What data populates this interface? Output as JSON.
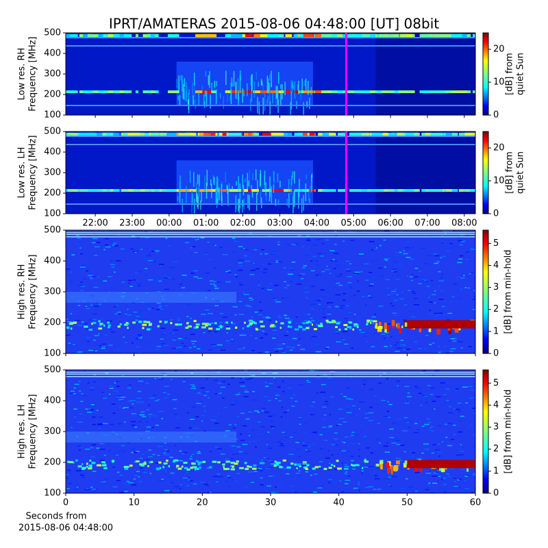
{
  "title": "IPRT/AMATERAS 2015-08-06 04:48:00 [UT]   08bit",
  "chart_data": [
    {
      "type": "heatmap",
      "ylabel": [
        "Low res. RH",
        "Frequency [MHz]"
      ],
      "ylim": [
        100,
        500
      ],
      "yticks": [
        100,
        200,
        300,
        400,
        500
      ],
      "xlim": [
        -2.8,
        8.3
      ],
      "marker_x": 4.8,
      "marker_color": "#ff00ff",
      "colorbar_label": [
        "[dB] from",
        "quiet Sun"
      ],
      "clim": [
        0,
        25
      ],
      "cticks": [
        0,
        10,
        20
      ],
      "colormap": "jet"
    },
    {
      "type": "heatmap",
      "ylabel": [
        "Low res. LH",
        "Frequency [MHz]"
      ],
      "ylim": [
        100,
        500
      ],
      "yticks": [
        100,
        200,
        300,
        400,
        500
      ],
      "xlim": [
        -2.8,
        8.3
      ],
      "xticks": [
        {
          "value": -2,
          "label": "22:00"
        },
        {
          "value": -1,
          "label": "23:00"
        },
        {
          "value": 0,
          "label": "00:00"
        },
        {
          "value": 1,
          "label": "01:00"
        },
        {
          "value": 2,
          "label": "02:00"
        },
        {
          "value": 3,
          "label": "03:00"
        },
        {
          "value": 4,
          "label": "04:00"
        },
        {
          "value": 5,
          "label": "05:00"
        },
        {
          "value": 6,
          "label": "06:00"
        },
        {
          "value": 7,
          "label": "07:00"
        },
        {
          "value": 8,
          "label": "08:00"
        }
      ],
      "marker_x": 4.8,
      "marker_color": "#ff00ff",
      "colorbar_label": [
        "[dB] from",
        "quiet Sun"
      ],
      "clim": [
        0,
        25
      ],
      "cticks": [
        0,
        10,
        20
      ],
      "colormap": "jet"
    },
    {
      "type": "heatmap",
      "ylabel": [
        "High res. RH",
        "Frequency [MHz]"
      ],
      "ylim": [
        100,
        500
      ],
      "yticks": [
        100,
        200,
        300,
        400,
        500
      ],
      "xlim": [
        0,
        60
      ],
      "colorbar_label": [
        "[dB] from min-hold"
      ],
      "clim": [
        0,
        5.6
      ],
      "cticks": [
        0,
        1,
        2,
        3,
        4,
        5
      ],
      "colormap": "jet"
    },
    {
      "type": "heatmap",
      "ylabel": [
        "High res. LH",
        "Frequency [MHz]"
      ],
      "ylim": [
        100,
        500
      ],
      "yticks": [
        100,
        200,
        300,
        400,
        500
      ],
      "xlim": [
        0,
        60
      ],
      "xticks": [
        0,
        10,
        20,
        30,
        40,
        50,
        60
      ],
      "xlabel": [
        "Seconds from",
        "2015-08-06 04:48:00"
      ],
      "colorbar_label": [
        "[dB] from min-hold"
      ],
      "clim": [
        0,
        5.6
      ],
      "cticks": [
        0,
        1,
        2,
        3,
        4,
        5
      ],
      "colormap": "jet"
    }
  ]
}
